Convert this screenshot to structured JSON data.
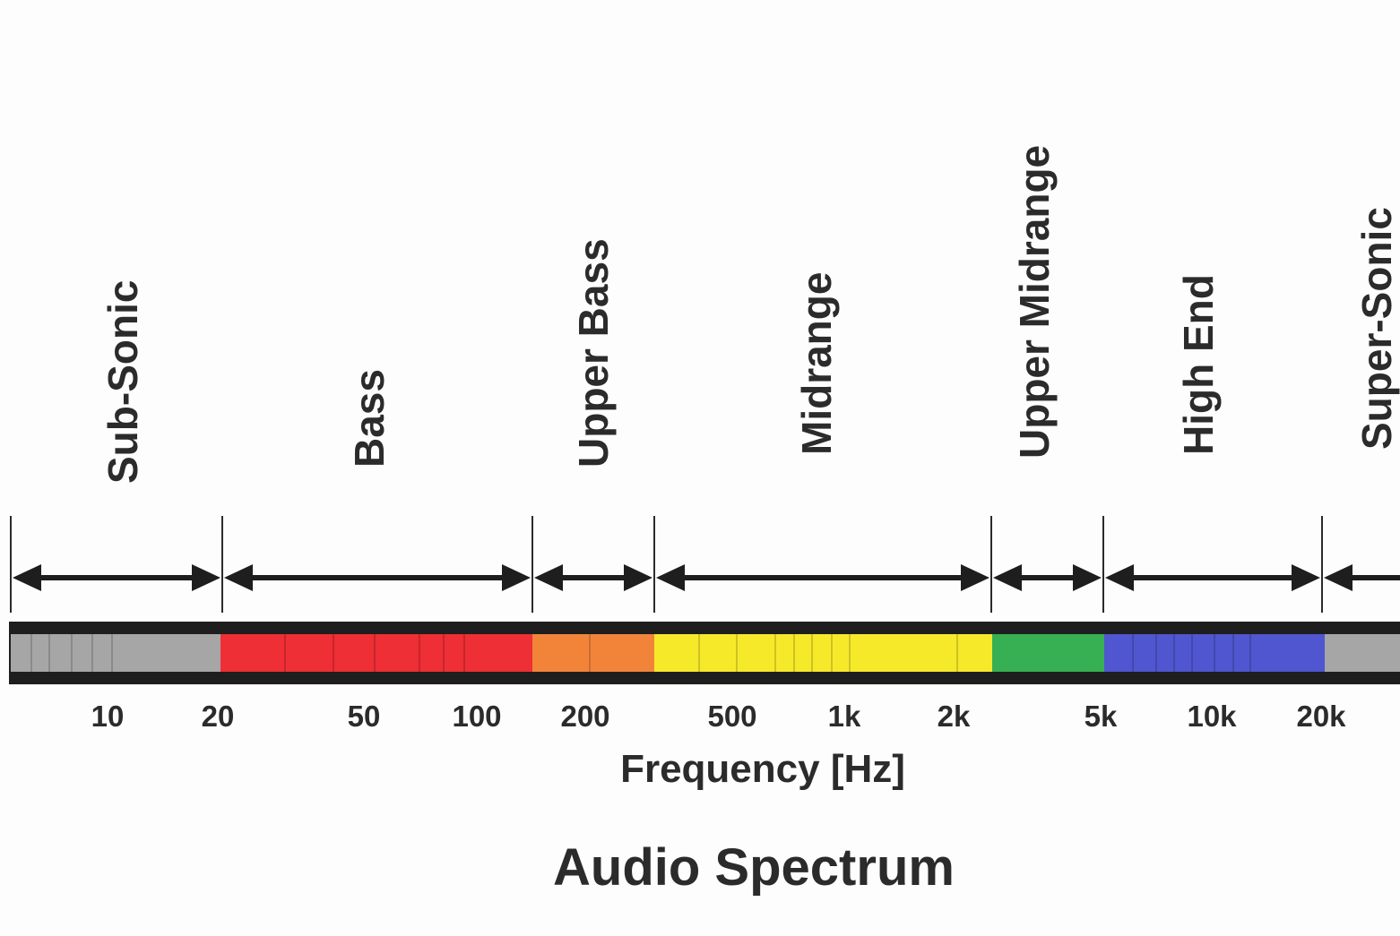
{
  "diagram": {
    "title": "Audio Spectrum",
    "axis_label": "Frequency [Hz]",
    "ranges": [
      {
        "name": "Sub-Sonic",
        "color": "#a6a6a6"
      },
      {
        "name": "Bass",
        "color": "#ee2f35"
      },
      {
        "name": "Upper Bass",
        "color": "#f2843a"
      },
      {
        "name": "Midrange",
        "color": "#f6e92a"
      },
      {
        "name": "Upper Midrange",
        "color": "#36b052"
      },
      {
        "name": "High End",
        "color": "#4f56cf"
      },
      {
        "name": "Super-Sonic",
        "color": "#a6a6a6"
      }
    ],
    "tick_labels": [
      "10",
      "20",
      "50",
      "100",
      "200",
      "500",
      "1k",
      "2k",
      "5k",
      "10k",
      "20k"
    ],
    "bar_frame_color": "#1e1e1e"
  }
}
